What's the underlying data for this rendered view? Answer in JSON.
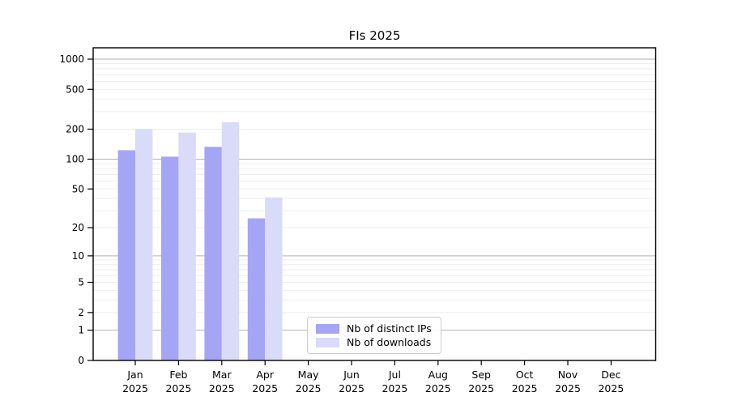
{
  "chart_data": {
    "type": "bar",
    "title": "FIs 2025",
    "categories": [
      "Jan 2025",
      "Feb 2025",
      "Mar 2025",
      "Apr 2025",
      "May 2025",
      "Jun 2025",
      "Jul 2025",
      "Aug 2025",
      "Sep 2025",
      "Oct 2025",
      "Nov 2025",
      "Dec 2025"
    ],
    "series": [
      {
        "name": "Nb of distinct IPs",
        "color": "#a5a5f6",
        "values": [
          123,
          106,
          133,
          25,
          null,
          null,
          null,
          null,
          null,
          null,
          null,
          null
        ]
      },
      {
        "name": "Nb of downloads",
        "color": "#dadaf9",
        "values": [
          200,
          185,
          235,
          41,
          null,
          null,
          null,
          null,
          null,
          null,
          null,
          null
        ]
      }
    ],
    "yscale": "log(value+1)",
    "ylim": [
      0,
      1000
    ],
    "yticks": [
      0,
      1,
      2,
      5,
      10,
      20,
      50,
      100,
      200,
      500,
      1000
    ],
    "major_grid_values": [
      1,
      10,
      100,
      1000
    ],
    "minor_grid_values": [
      2,
      3,
      4,
      5,
      6,
      7,
      8,
      9,
      20,
      30,
      40,
      50,
      60,
      70,
      80,
      90,
      200,
      300,
      400,
      500,
      600,
      700,
      800,
      900
    ],
    "grid": true,
    "legend_position": "lower-center-inside",
    "colors": {
      "major_grid": "#b2b2b2",
      "minor_grid": "#ededed",
      "spine": "#000000",
      "text": "#000000",
      "background": "#ffffff"
    }
  }
}
